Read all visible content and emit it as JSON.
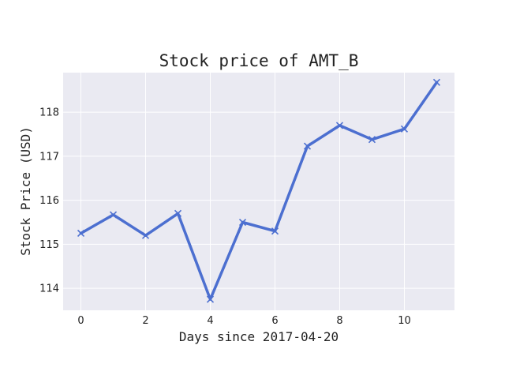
{
  "chart_data": {
    "type": "line",
    "title": "Stock price of AMT_B",
    "xlabel": "Days since 2017-04-20",
    "ylabel": "Stock Price (USD)",
    "x": [
      0,
      1,
      2,
      3,
      4,
      5,
      6,
      7,
      8,
      9,
      10,
      11
    ],
    "series": [
      {
        "values": [
          115.25,
          115.67,
          115.2,
          115.7,
          113.75,
          115.5,
          115.3,
          117.23,
          117.7,
          117.38,
          117.62,
          118.68
        ]
      }
    ],
    "xlim": [
      -0.55,
      11.55
    ],
    "ylim": [
      113.5,
      118.9
    ],
    "xticks": [
      0,
      2,
      4,
      6,
      8,
      10
    ],
    "yticks": [
      114,
      115,
      116,
      117,
      118
    ],
    "grid": true,
    "marker": "x",
    "colors": {
      "line": "#4c6fd0",
      "plot_background": "#eaeaf2",
      "grid": "#ffffff"
    }
  }
}
